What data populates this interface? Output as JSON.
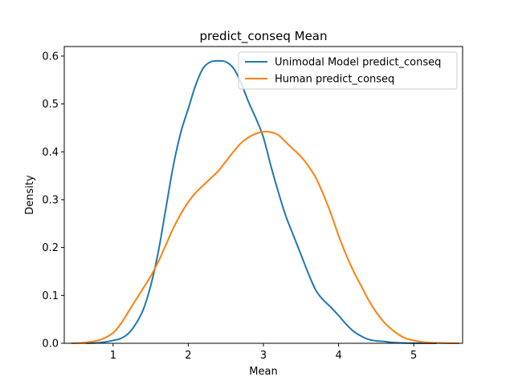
{
  "chart_data": {
    "type": "line",
    "title": "predict_conseq Mean",
    "xlabel": "Mean",
    "ylabel": "Density",
    "xlim": [
      0.35,
      5.65
    ],
    "ylim": [
      0,
      0.62
    ],
    "xticks": [
      1,
      2,
      3,
      4,
      5
    ],
    "xtick_labels": [
      "1",
      "2",
      "3",
      "4",
      "5"
    ],
    "yticks": [
      0.0,
      0.1,
      0.2,
      0.3,
      0.4,
      0.5,
      0.6
    ],
    "ytick_labels": [
      "0.0",
      "0.1",
      "0.2",
      "0.3",
      "0.4",
      "0.5",
      "0.6"
    ],
    "grid": false,
    "legend_position": "top-right",
    "series": [
      {
        "name": "Unimodal Model predict_conseq",
        "color": "#1f77b4",
        "x": [
          0.65,
          0.8,
          0.9,
          1.0,
          1.1,
          1.2,
          1.3,
          1.4,
          1.5,
          1.6,
          1.7,
          1.8,
          1.9,
          2.0,
          2.1,
          2.2,
          2.3,
          2.4,
          2.5,
          2.6,
          2.7,
          2.8,
          2.9,
          3.0,
          3.1,
          3.2,
          3.3,
          3.4,
          3.5,
          3.6,
          3.7,
          3.8,
          3.9,
          4.0,
          4.1,
          4.2,
          4.3,
          4.4,
          4.5,
          4.6,
          4.7,
          4.8,
          4.9,
          5.0,
          5.1,
          5.2,
          5.3
        ],
        "y": [
          0.0,
          0.001,
          0.003,
          0.006,
          0.01,
          0.02,
          0.04,
          0.07,
          0.12,
          0.19,
          0.28,
          0.37,
          0.44,
          0.49,
          0.54,
          0.575,
          0.588,
          0.59,
          0.588,
          0.575,
          0.545,
          0.505,
          0.47,
          0.43,
          0.37,
          0.315,
          0.265,
          0.225,
          0.185,
          0.145,
          0.11,
          0.09,
          0.075,
          0.058,
          0.04,
          0.025,
          0.015,
          0.008,
          0.005,
          0.004,
          0.002,
          0.001,
          0.0005,
          0.0002,
          0.0001,
          0.0,
          0.0
        ]
      },
      {
        "name": "Human predict_conseq",
        "color": "#ff7f0e",
        "x": [
          0.45,
          0.6,
          0.7,
          0.8,
          0.9,
          1.0,
          1.1,
          1.2,
          1.3,
          1.4,
          1.5,
          1.6,
          1.7,
          1.8,
          1.9,
          2.0,
          2.1,
          2.2,
          2.3,
          2.4,
          2.5,
          2.6,
          2.7,
          2.8,
          2.9,
          3.0,
          3.1,
          3.2,
          3.3,
          3.4,
          3.5,
          3.6,
          3.7,
          3.8,
          3.9,
          4.0,
          4.1,
          4.2,
          4.3,
          4.4,
          4.5,
          4.6,
          4.7,
          4.8,
          4.9,
          5.0,
          5.1,
          5.2,
          5.3,
          5.45,
          5.6
        ],
        "y": [
          0.0,
          0.001,
          0.003,
          0.006,
          0.012,
          0.022,
          0.04,
          0.065,
          0.09,
          0.115,
          0.14,
          0.17,
          0.205,
          0.24,
          0.27,
          0.295,
          0.315,
          0.33,
          0.345,
          0.36,
          0.38,
          0.4,
          0.418,
          0.43,
          0.438,
          0.442,
          0.441,
          0.435,
          0.42,
          0.405,
          0.39,
          0.37,
          0.345,
          0.31,
          0.27,
          0.225,
          0.185,
          0.15,
          0.12,
          0.09,
          0.065,
          0.045,
          0.03,
          0.018,
          0.01,
          0.006,
          0.003,
          0.0015,
          0.0008,
          0.0002,
          0.0
        ]
      }
    ]
  }
}
